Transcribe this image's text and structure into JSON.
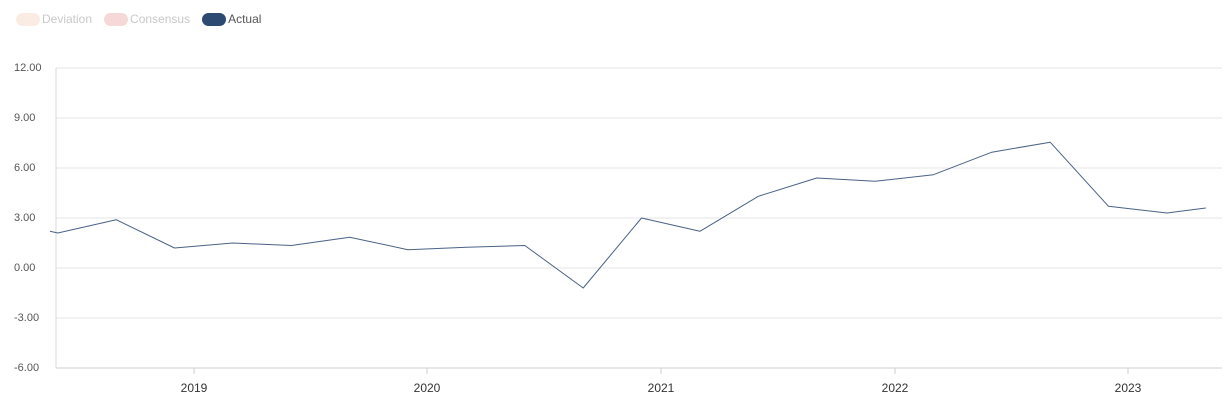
{
  "legend": [
    {
      "label": "Deviation",
      "color": "#fbece3",
      "active": false
    },
    {
      "label": "Consensus",
      "color": "#f6d8d8",
      "active": false
    },
    {
      "label": "Actual",
      "color": "#2c4a72",
      "active": true
    }
  ],
  "chart_data": {
    "type": "line",
    "x_tick_labels": [
      "2019",
      "2020",
      "2021",
      "2022",
      "2023"
    ],
    "y_tick_labels": [
      "12.00",
      "9.00",
      "6.00",
      "3.00",
      "0.00",
      "-3.00",
      "-6.00"
    ],
    "ylim": [
      -6,
      12
    ],
    "series": [
      {
        "color": "#4a6285",
        "points": [
          {
            "x": "2018-05",
            "y": 2.2
          },
          {
            "x": "2018-06",
            "y": 2.1
          },
          {
            "x": "2018-09",
            "y": 2.9
          },
          {
            "x": "2018-12",
            "y": 1.2
          },
          {
            "x": "2019-03",
            "y": 1.5
          },
          {
            "x": "2019-06",
            "y": 1.35
          },
          {
            "x": "2019-09",
            "y": 1.85
          },
          {
            "x": "2019-12",
            "y": 1.1
          },
          {
            "x": "2020-03",
            "y": 1.25
          },
          {
            "x": "2020-06",
            "y": 1.35
          },
          {
            "x": "2020-09",
            "y": -1.2
          },
          {
            "x": "2020-12",
            "y": 3.0
          },
          {
            "x": "2021-03",
            "y": 2.2
          },
          {
            "x": "2021-06",
            "y": 4.3
          },
          {
            "x": "2021-09",
            "y": 5.4
          },
          {
            "x": "2021-12",
            "y": 5.2
          },
          {
            "x": "2022-03",
            "y": 5.6
          },
          {
            "x": "2022-06",
            "y": 6.95
          },
          {
            "x": "2022-09",
            "y": 7.55
          },
          {
            "x": "2022-12",
            "y": 3.7
          },
          {
            "x": "2023-03",
            "y": 3.3
          },
          {
            "x": "2023-05",
            "y": 3.6
          }
        ]
      }
    ],
    "grid": true
  }
}
